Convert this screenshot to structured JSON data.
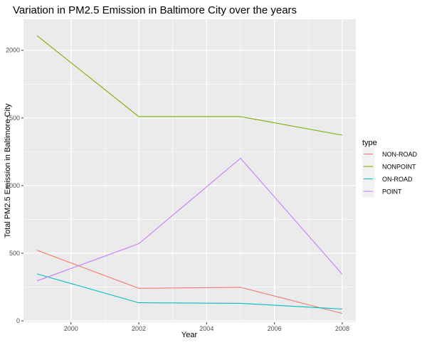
{
  "chart_data": {
    "type": "line",
    "title": "Variation in PM2.5 Emission in Baltimore City over the years",
    "xlabel": "Year",
    "ylabel": "Total PM2.5 Emission in Baltimore City",
    "x": [
      1999,
      2002,
      2005,
      2008
    ],
    "xlim": [
      1998.6,
      2008.4
    ],
    "ylim": [
      -10,
      2230
    ],
    "xticks": [
      2000,
      2002,
      2004,
      2006,
      2008
    ],
    "yticks": [
      0,
      500,
      1000,
      1500,
      2000
    ],
    "grid": true,
    "legend": {
      "title": "type",
      "placement": "right"
    },
    "series": [
      {
        "name": "NON-ROAD",
        "color": "#F8766D",
        "values": [
          522,
          241,
          248,
          55
        ]
      },
      {
        "name": "NONPOINT",
        "color": "#7CAE00",
        "values": [
          2108,
          1510,
          1510,
          1373
        ]
      },
      {
        "name": "ON-ROAD",
        "color": "#00BFC4",
        "values": [
          347,
          134,
          130,
          88
        ]
      },
      {
        "name": "POINT",
        "color": "#C77CFF",
        "values": [
          296,
          570,
          1202,
          345
        ]
      }
    ]
  }
}
